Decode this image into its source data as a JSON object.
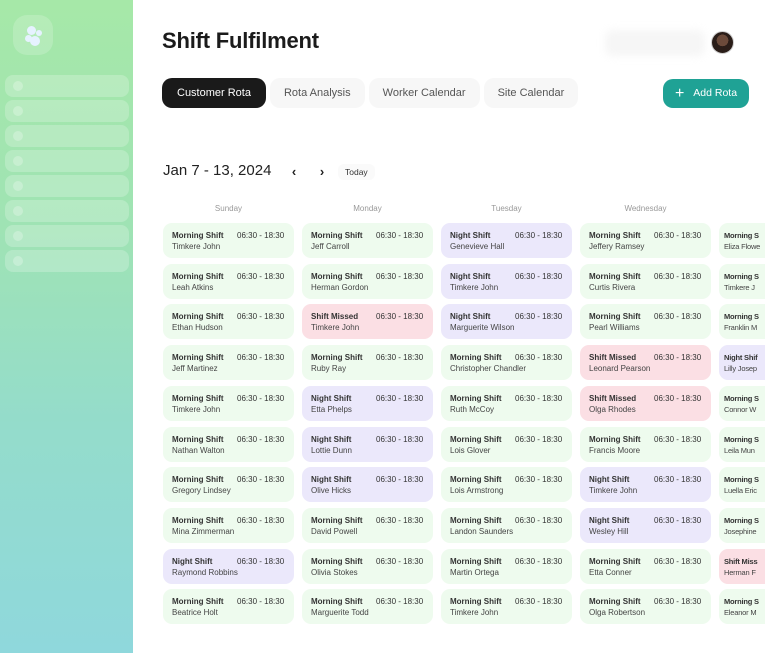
{
  "header": {
    "title": "Shift Fulfilment",
    "avatar": "user-avatar"
  },
  "tabs": [
    {
      "label": "Customer Rota",
      "active": true
    },
    {
      "label": "Rota Analysis"
    },
    {
      "label": "Worker Calendar"
    },
    {
      "label": "Site Calendar"
    }
  ],
  "add_button": {
    "label": "Add Rota",
    "icon": "plus-icon"
  },
  "calendar": {
    "range": "Jan 7 - 13, 2024",
    "prev_icon": "chevron-left-icon",
    "next_icon": "chevron-right-icon",
    "today_label": "Today",
    "colors": {
      "morning": "#eefbee",
      "night": "#ebe8fb",
      "missed": "#fbdfe4",
      "accent": "#1fa295"
    },
    "days": [
      {
        "name": "Sunday",
        "shifts": [
          {
            "type": "morning",
            "label": "Morning Shift",
            "time": "06:30 - 18:30",
            "worker": "Timkere John"
          },
          {
            "type": "morning",
            "label": "Morning Shift",
            "time": "06:30 - 18:30",
            "worker": "Leah Atkins"
          },
          {
            "type": "morning",
            "label": "Morning Shift",
            "time": "06:30 - 18:30",
            "worker": "Ethan Hudson"
          },
          {
            "type": "morning",
            "label": "Morning Shift",
            "time": "06:30 - 18:30",
            "worker": "Jeff Martinez"
          },
          {
            "type": "morning",
            "label": "Morning Shift",
            "time": "06:30 - 18:30",
            "worker": "Timkere John"
          },
          {
            "type": "morning",
            "label": "Morning Shift",
            "time": "06:30 - 18:30",
            "worker": "Nathan Walton"
          },
          {
            "type": "morning",
            "label": "Morning Shift",
            "time": "06:30 - 18:30",
            "worker": "Gregory Lindsey"
          },
          {
            "type": "morning",
            "label": "Morning Shift",
            "time": "06:30 - 18:30",
            "worker": "Mina Zimmerman"
          },
          {
            "type": "night",
            "label": "Night Shift",
            "time": "06:30 - 18:30",
            "worker": "Raymond Robbins"
          },
          {
            "type": "morning",
            "label": "Morning Shift",
            "time": "06:30 - 18:30",
            "worker": "Beatrice Holt"
          }
        ]
      },
      {
        "name": "Monday",
        "shifts": [
          {
            "type": "morning",
            "label": "Morning Shift",
            "time": "06:30 - 18:30",
            "worker": "Jeff Carroll"
          },
          {
            "type": "morning",
            "label": "Morning Shift",
            "time": "06:30 - 18:30",
            "worker": "Herman Gordon"
          },
          {
            "type": "missed",
            "label": "Shift Missed",
            "time": "06:30 - 18:30",
            "worker": "Timkere John"
          },
          {
            "type": "morning",
            "label": "Morning Shift",
            "time": "06:30 - 18:30",
            "worker": "Ruby Ray"
          },
          {
            "type": "night",
            "label": "Night Shift",
            "time": "06:30 - 18:30",
            "worker": "Etta Phelps"
          },
          {
            "type": "night",
            "label": "Night Shift",
            "time": "06:30 - 18:30",
            "worker": "Lottie Dunn"
          },
          {
            "type": "night",
            "label": "Night Shift",
            "time": "06:30 - 18:30",
            "worker": "Olive Hicks"
          },
          {
            "type": "morning",
            "label": "Morning Shift",
            "time": "06:30 - 18:30",
            "worker": "David Powell"
          },
          {
            "type": "morning",
            "label": "Morning Shift",
            "time": "06:30 - 18:30",
            "worker": "Olivia Stokes"
          },
          {
            "type": "morning",
            "label": "Morning Shift",
            "time": "06:30 - 18:30",
            "worker": "Marguerite Todd"
          }
        ]
      },
      {
        "name": "Tuesday",
        "shifts": [
          {
            "type": "night",
            "label": "Night Shift",
            "time": "06:30 - 18:30",
            "worker": "Genevieve Hall"
          },
          {
            "type": "night",
            "label": "Night Shift",
            "time": "06:30 - 18:30",
            "worker": "Timkere John"
          },
          {
            "type": "night",
            "label": "Night Shift",
            "time": "06:30 - 18:30",
            "worker": "Marguerite Wilson"
          },
          {
            "type": "morning",
            "label": "Morning Shift",
            "time": "06:30 - 18:30",
            "worker": "Christopher Chandler"
          },
          {
            "type": "morning",
            "label": "Morning Shift",
            "time": "06:30 - 18:30",
            "worker": "Ruth McCoy"
          },
          {
            "type": "morning",
            "label": "Morning Shift",
            "time": "06:30 - 18:30",
            "worker": "Lois Glover"
          },
          {
            "type": "morning",
            "label": "Morning Shift",
            "time": "06:30 - 18:30",
            "worker": "Lois Armstrong"
          },
          {
            "type": "morning",
            "label": "Morning Shift",
            "time": "06:30 - 18:30",
            "worker": "Landon Saunders"
          },
          {
            "type": "morning",
            "label": "Morning Shift",
            "time": "06:30 - 18:30",
            "worker": "Martin Ortega"
          },
          {
            "type": "morning",
            "label": "Morning Shift",
            "time": "06:30 - 18:30",
            "worker": "Timkere John"
          }
        ]
      },
      {
        "name": "Wednesday",
        "shifts": [
          {
            "type": "morning",
            "label": "Morning Shift",
            "time": "06:30 - 18:30",
            "worker": "Jeffery Ramsey"
          },
          {
            "type": "morning",
            "label": "Morning Shift",
            "time": "06:30 - 18:30",
            "worker": "Curtis Rivera"
          },
          {
            "type": "morning",
            "label": "Morning Shift",
            "time": "06:30 - 18:30",
            "worker": "Pearl Williams"
          },
          {
            "type": "missed",
            "label": "Shift Missed",
            "time": "06:30 - 18:30",
            "worker": "Leonard Pearson"
          },
          {
            "type": "missed",
            "label": "Shift Missed",
            "time": "06:30 - 18:30",
            "worker": "Olga Rhodes"
          },
          {
            "type": "morning",
            "label": "Morning Shift",
            "time": "06:30 - 18:30",
            "worker": "Francis Moore"
          },
          {
            "type": "night",
            "label": "Night Shift",
            "time": "06:30 - 18:30",
            "worker": "Timkere John"
          },
          {
            "type": "night",
            "label": "Night Shift",
            "time": "06:30 - 18:30",
            "worker": "Wesley Hill"
          },
          {
            "type": "morning",
            "label": "Morning Shift",
            "time": "06:30 - 18:30",
            "worker": "Etta Conner"
          },
          {
            "type": "morning",
            "label": "Morning Shift",
            "time": "06:30 - 18:30",
            "worker": "Olga Robertson"
          }
        ]
      },
      {
        "name": "",
        "shifts": [
          {
            "type": "morning",
            "label": "Morning S",
            "time": "",
            "worker": "Eliza Flowe"
          },
          {
            "type": "morning",
            "label": "Morning S",
            "time": "",
            "worker": "Timkere J"
          },
          {
            "type": "morning",
            "label": "Morning S",
            "time": "",
            "worker": "Franklin M"
          },
          {
            "type": "night",
            "label": "Night Shif",
            "time": "",
            "worker": "Lilly Josep"
          },
          {
            "type": "morning",
            "label": "Morning S",
            "time": "",
            "worker": "Connor W"
          },
          {
            "type": "morning",
            "label": "Morning S",
            "time": "",
            "worker": "Leila Mun"
          },
          {
            "type": "morning",
            "label": "Morning S",
            "time": "",
            "worker": "Luella Eric"
          },
          {
            "type": "morning",
            "label": "Morning S",
            "time": "",
            "worker": "Josephine"
          },
          {
            "type": "missed",
            "label": "Shift Miss",
            "time": "",
            "worker": "Herman F"
          },
          {
            "type": "morning",
            "label": "Morning S",
            "time": "",
            "worker": "Eleanor M"
          }
        ]
      }
    ]
  }
}
